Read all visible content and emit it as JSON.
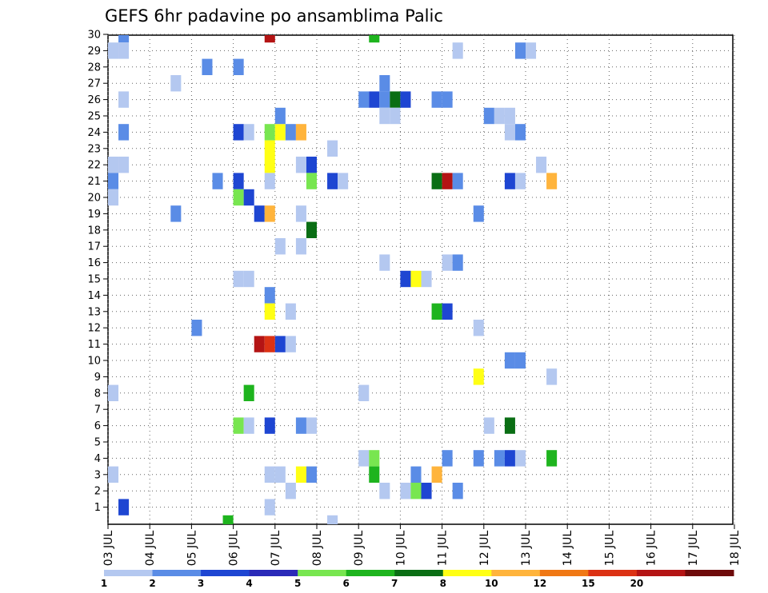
{
  "chart_data": {
    "type": "heatmap",
    "title": "GEFS 6hr padavine po ansamblima Palic",
    "y_ticks": [
      1,
      2,
      3,
      4,
      5,
      6,
      7,
      8,
      9,
      10,
      11,
      12,
      13,
      14,
      15,
      16,
      17,
      18,
      19,
      20,
      21,
      22,
      23,
      24,
      25,
      26,
      27,
      28,
      29,
      30
    ],
    "x_ticks": [
      "03 JUL",
      "04 JUL",
      "05 JUL",
      "06 JUL",
      "07 JUL",
      "08 JUL",
      "09 JUL",
      "10 JUL",
      "11 JUL",
      "12 JUL",
      "13 JUL",
      "14 JUL",
      "15 JUL",
      "16 JUL",
      "17 JUL",
      "18 JUL"
    ],
    "time_steps_per_day": 4,
    "grid": true,
    "colorbar": {
      "labels": [
        "1",
        "2",
        "3",
        "4",
        "5",
        "6",
        "7",
        "8",
        "10",
        "12",
        "15",
        "20"
      ],
      "colors": [
        "#b4c8f0",
        "#5a8ce6",
        "#1e46d2",
        "#2a2ab8",
        "#78e650",
        "#1eb41e",
        "#0a6e14",
        "#ffff14",
        "#ffb43c",
        "#f07814",
        "#dc3214",
        "#b41414",
        "#6e0a0a"
      ]
    },
    "cells": [
      {
        "x": 1,
        "y": 30,
        "c": 2
      },
      {
        "x": 0,
        "y": 29,
        "c": 1
      },
      {
        "x": 1,
        "y": 29,
        "c": 1
      },
      {
        "x": 1,
        "y": 26,
        "c": 1
      },
      {
        "x": 1,
        "y": 24,
        "c": 2
      },
      {
        "x": 0,
        "y": 22,
        "c": 1
      },
      {
        "x": 1,
        "y": 22,
        "c": 1
      },
      {
        "x": 0,
        "y": 21,
        "c": 2
      },
      {
        "x": 0,
        "y": 20,
        "c": 1
      },
      {
        "x": 0,
        "y": 8,
        "c": 1
      },
      {
        "x": 0,
        "y": 3,
        "c": 1
      },
      {
        "x": 1,
        "y": 1,
        "c": 3
      },
      {
        "x": 6,
        "y": 27,
        "c": 1
      },
      {
        "x": 6,
        "y": 19,
        "c": 2
      },
      {
        "x": 8,
        "y": 12,
        "c": 2
      },
      {
        "x": 9,
        "y": 28,
        "c": 2
      },
      {
        "x": 10,
        "y": 21,
        "c": 2
      },
      {
        "x": 12,
        "y": 28,
        "c": 2
      },
      {
        "x": 12,
        "y": 24,
        "c": 3
      },
      {
        "x": 13,
        "y": 24,
        "c": 1
      },
      {
        "x": 12,
        "y": 21,
        "c": 3
      },
      {
        "x": 12,
        "y": 20,
        "c": 5
      },
      {
        "x": 13,
        "y": 20,
        "c": 3
      },
      {
        "x": 12,
        "y": 15,
        "c": 1
      },
      {
        "x": 13,
        "y": 15,
        "c": 1
      },
      {
        "x": 13,
        "y": 8,
        "c": 6
      },
      {
        "x": 12,
        "y": 6,
        "c": 5
      },
      {
        "x": 13,
        "y": 6,
        "c": 1
      },
      {
        "x": 14,
        "y": 11,
        "c": 12
      },
      {
        "x": 15,
        "y": 11,
        "c": 11
      },
      {
        "x": 14,
        "y": 19,
        "c": 3
      },
      {
        "x": 15,
        "y": 19,
        "c": 9
      },
      {
        "x": 15,
        "y": 30,
        "c": 12
      },
      {
        "x": 15,
        "y": 24,
        "c": 5
      },
      {
        "x": 16,
        "y": 24,
        "c": 8
      },
      {
        "x": 17,
        "y": 24,
        "c": 2
      },
      {
        "x": 15,
        "y": 23,
        "c": 8
      },
      {
        "x": 15,
        "y": 22,
        "c": 8
      },
      {
        "x": 16,
        "y": 25,
        "c": 2
      },
      {
        "x": 15,
        "y": 21,
        "c": 1
      },
      {
        "x": 16,
        "y": 17,
        "c": 1
      },
      {
        "x": 15,
        "y": 14,
        "c": 2
      },
      {
        "x": 15,
        "y": 13,
        "c": 8
      },
      {
        "x": 17,
        "y": 13,
        "c": 1
      },
      {
        "x": 16,
        "y": 11,
        "c": 3
      },
      {
        "x": 17,
        "y": 11,
        "c": 1
      },
      {
        "x": 15,
        "y": 6,
        "c": 3
      },
      {
        "x": 15,
        "y": 3,
        "c": 1
      },
      {
        "x": 16,
        "y": 3,
        "c": 1
      },
      {
        "x": 17,
        "y": 2,
        "c": 1
      },
      {
        "x": 15,
        "y": 1,
        "c": 1
      },
      {
        "x": 18,
        "y": 24,
        "c": 9
      },
      {
        "x": 18,
        "y": 22,
        "c": 1
      },
      {
        "x": 19,
        "y": 22,
        "c": 3
      },
      {
        "x": 19,
        "y": 21,
        "c": 5
      },
      {
        "x": 18,
        "y": 19,
        "c": 1
      },
      {
        "x": 19,
        "y": 18,
        "c": 7
      },
      {
        "x": 18,
        "y": 17,
        "c": 1
      },
      {
        "x": 18,
        "y": 6,
        "c": 2
      },
      {
        "x": 19,
        "y": 6,
        "c": 1
      },
      {
        "x": 18,
        "y": 3,
        "c": 8
      },
      {
        "x": 19,
        "y": 3,
        "c": 2
      },
      {
        "x": 21,
        "y": 21,
        "c": 3
      },
      {
        "x": 21,
        "y": 23,
        "c": 1
      },
      {
        "x": 22,
        "y": 21,
        "c": 1
      },
      {
        "x": 24,
        "y": 8,
        "c": 1
      },
      {
        "x": 25,
        "y": 30,
        "c": 6
      },
      {
        "x": 24,
        "y": 26,
        "c": 2
      },
      {
        "x": 25,
        "y": 26,
        "c": 3
      },
      {
        "x": 26,
        "y": 26,
        "c": 2
      },
      {
        "x": 27,
        "y": 26,
        "c": 7
      },
      {
        "x": 28,
        "y": 26,
        "c": 3
      },
      {
        "x": 26,
        "y": 27,
        "c": 2
      },
      {
        "x": 26,
        "y": 25,
        "c": 1
      },
      {
        "x": 27,
        "y": 25,
        "c": 1
      },
      {
        "x": 26,
        "y": 16,
        "c": 1
      },
      {
        "x": 24,
        "y": 4,
        "c": 1
      },
      {
        "x": 25,
        "y": 4,
        "c": 5
      },
      {
        "x": 25,
        "y": 3,
        "c": 6
      },
      {
        "x": 26,
        "y": 2,
        "c": 1
      },
      {
        "x": 28,
        "y": 15,
        "c": 3
      },
      {
        "x": 29,
        "y": 15,
        "c": 8
      },
      {
        "x": 30,
        "y": 15,
        "c": 1
      },
      {
        "x": 28,
        "y": 2,
        "c": 1
      },
      {
        "x": 29,
        "y": 2,
        "c": 5
      },
      {
        "x": 30,
        "y": 2,
        "c": 3
      },
      {
        "x": 29,
        "y": 3,
        "c": 2
      },
      {
        "x": 31,
        "y": 3,
        "c": 9
      },
      {
        "x": 31,
        "y": 26,
        "c": 2
      },
      {
        "x": 32,
        "y": 26,
        "c": 2
      },
      {
        "x": 31,
        "y": 21,
        "c": 7
      },
      {
        "x": 32,
        "y": 21,
        "c": 12
      },
      {
        "x": 33,
        "y": 21,
        "c": 2
      },
      {
        "x": 31,
        "y": 13,
        "c": 6
      },
      {
        "x": 32,
        "y": 13,
        "c": 3
      },
      {
        "x": 32,
        "y": 16,
        "c": 1
      },
      {
        "x": 33,
        "y": 16,
        "c": 2
      },
      {
        "x": 33,
        "y": 29,
        "c": 1
      },
      {
        "x": 32,
        "y": 4,
        "c": 2
      },
      {
        "x": 33,
        "y": 2,
        "c": 2
      },
      {
        "x": 35,
        "y": 19,
        "c": 2
      },
      {
        "x": 35,
        "y": 12,
        "c": 1
      },
      {
        "x": 35,
        "y": 9,
        "c": 8
      },
      {
        "x": 35,
        "y": 4,
        "c": 2
      },
      {
        "x": 36,
        "y": 25,
        "c": 2
      },
      {
        "x": 37,
        "y": 25,
        "c": 1
      },
      {
        "x": 36,
        "y": 6,
        "c": 1
      },
      {
        "x": 38,
        "y": 25,
        "c": 1
      },
      {
        "x": 38,
        "y": 24,
        "c": 1
      },
      {
        "x": 39,
        "y": 24,
        "c": 2
      },
      {
        "x": 38,
        "y": 21,
        "c": 3
      },
      {
        "x": 39,
        "y": 21,
        "c": 1
      },
      {
        "x": 39,
        "y": 29,
        "c": 2
      },
      {
        "x": 40,
        "y": 29,
        "c": 1
      },
      {
        "x": 38,
        "y": 10,
        "c": 2
      },
      {
        "x": 39,
        "y": 10,
        "c": 2
      },
      {
        "x": 38,
        "y": 6,
        "c": 7
      },
      {
        "x": 37,
        "y": 4,
        "c": 2
      },
      {
        "x": 38,
        "y": 4,
        "c": 3
      },
      {
        "x": 39,
        "y": 4,
        "c": 1
      },
      {
        "x": 41,
        "y": 22,
        "c": 1
      },
      {
        "x": 42,
        "y": 21,
        "c": 9
      },
      {
        "x": 42,
        "y": 9,
        "c": 1
      },
      {
        "x": 42,
        "y": 4,
        "c": 6
      },
      {
        "x": 11,
        "y": 0,
        "c": 6
      },
      {
        "x": 21,
        "y": 0,
        "c": 1
      }
    ]
  }
}
